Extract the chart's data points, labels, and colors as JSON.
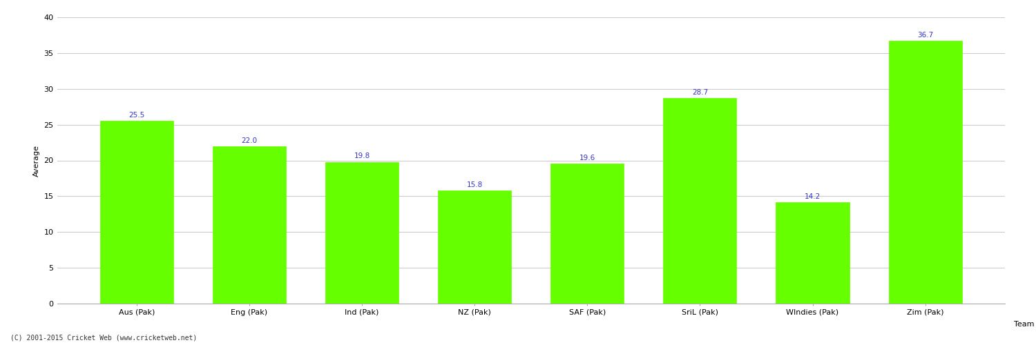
{
  "categories": [
    "Aus (Pak)",
    "Eng (Pak)",
    "Ind (Pak)",
    "NZ (Pak)",
    "SAF (Pak)",
    "SriL (Pak)",
    "WIndies (Pak)",
    "Zim (Pak)"
  ],
  "values": [
    25.5,
    22.0,
    19.8,
    15.8,
    19.6,
    28.7,
    14.2,
    36.7
  ],
  "bar_color": "#66ff00",
  "bar_edge_color": "#66ff00",
  "label_color": "#3333cc",
  "xlabel": "Team",
  "ylabel": "Average",
  "ylim": [
    0,
    40
  ],
  "yticks": [
    0,
    5,
    10,
    15,
    20,
    25,
    30,
    35,
    40
  ],
  "grid_color": "#cccccc",
  "bg_color": "#ffffff",
  "fig_bg_color": "#ffffff",
  "footer": "(C) 2001-2015 Cricket Web (www.cricketweb.net)",
  "tick_fontsize": 8,
  "xlabel_fontsize": 8,
  "ylabel_fontsize": 8,
  "footer_fontsize": 7,
  "bar_label_fontsize": 7.5,
  "bar_width": 0.65
}
